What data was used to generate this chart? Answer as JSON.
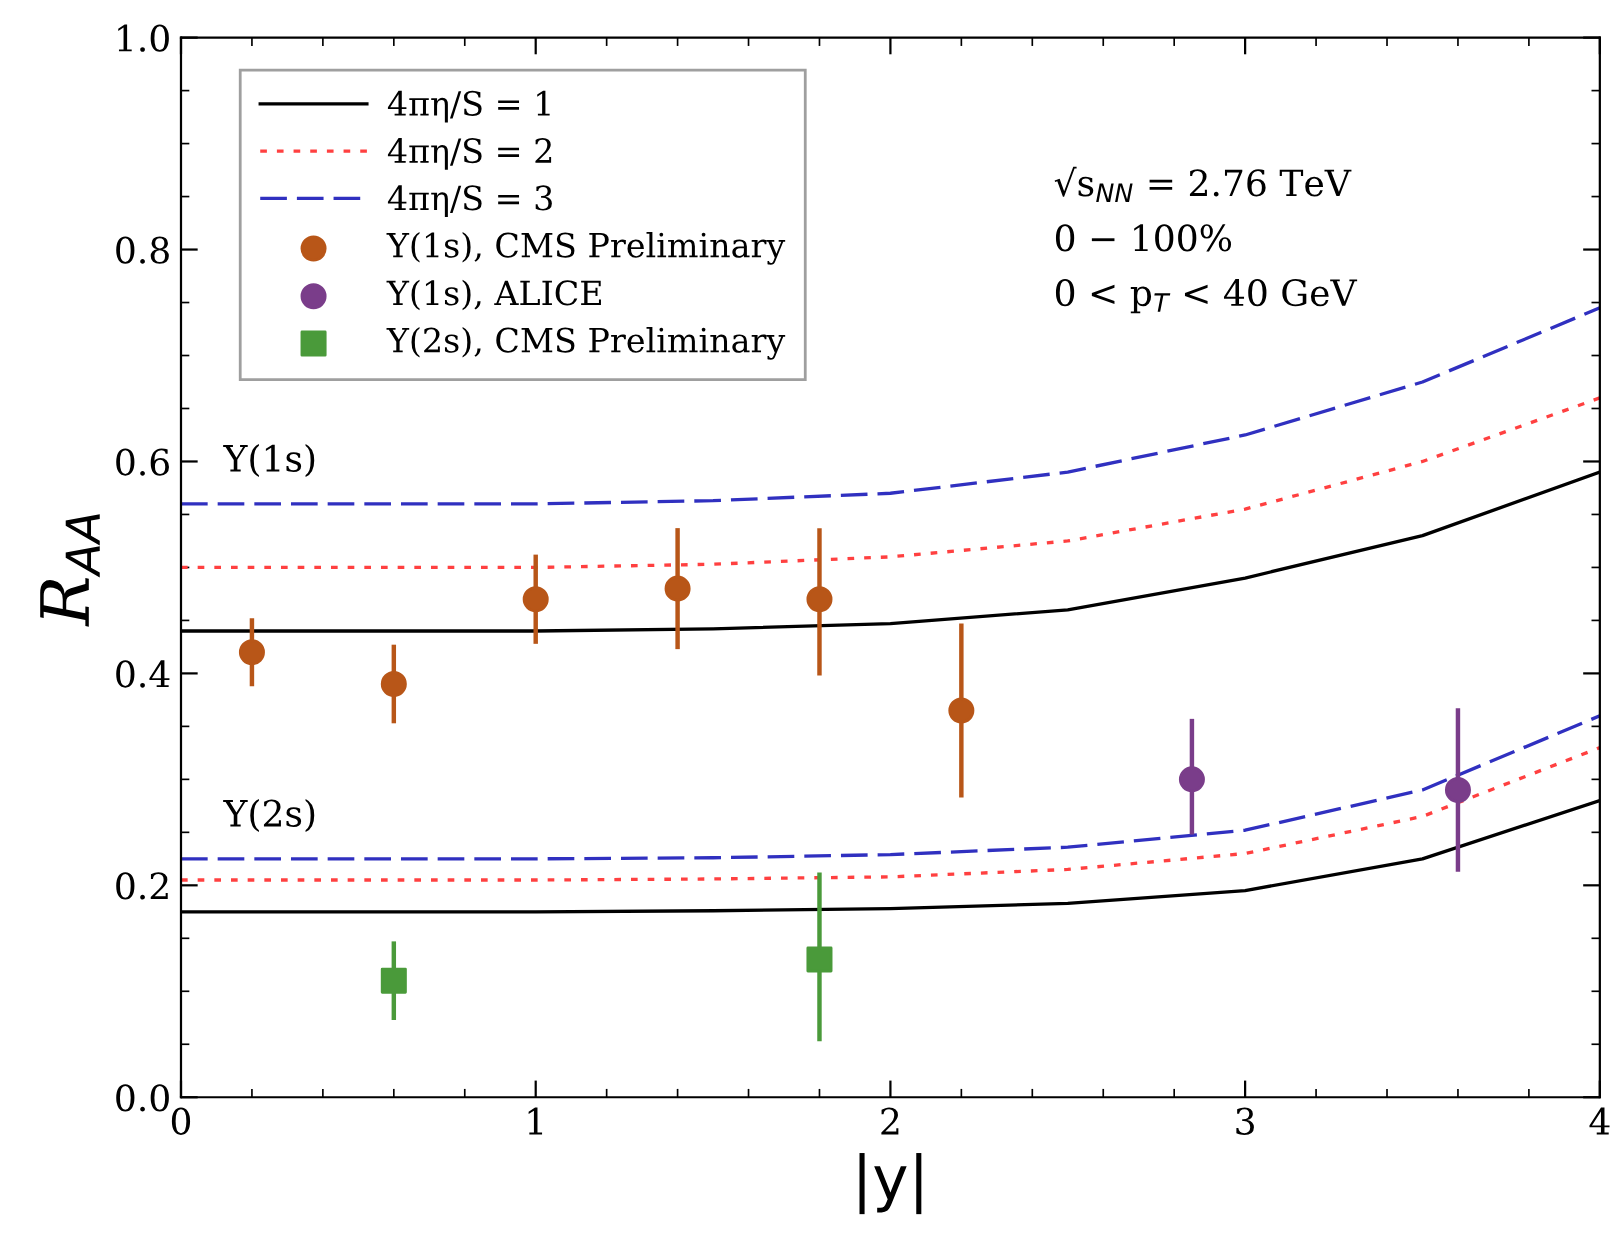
{
  "chart_data": {
    "type": "line",
    "xlabel": "|y|",
    "ylabel": "R$_{AA}$",
    "xlim": [
      0,
      4
    ],
    "ylim": [
      0,
      1
    ],
    "xticks": [
      0,
      1,
      2,
      3,
      4
    ],
    "yticks": [
      {
        "value": 0,
        "label": "0.0"
      },
      {
        "value": 0.2,
        "label": "0.2"
      },
      {
        "value": 0.4,
        "label": "0.4"
      },
      {
        "value": 0.6,
        "label": "0.6"
      },
      {
        "value": 0.8,
        "label": "0.8"
      },
      {
        "value": 1,
        "label": "1.0"
      }
    ],
    "grid": false,
    "legend": "top left",
    "annotations": [
      "Υ(1s)",
      "Υ(2s)",
      "√s$_{NN}$ = 2.76 TeV",
      "0 − 100%",
      "0 < p$_{T}$ < 40 GeV"
    ],
    "series": [
      {
        "name": "4πη/S = 1",
        "color": "#000000",
        "line_style": "solid",
        "x": [
          0,
          0.5,
          1,
          1.5,
          2,
          2.5,
          3,
          3.5,
          4
        ],
        "values": [
          0.44,
          0.44,
          0.44,
          0.442,
          0.447,
          0.46,
          0.49,
          0.53,
          0.59
        ]
      },
      {
        "name": "4πη/S = 2",
        "color": "#ff4040",
        "line_style": "dotted",
        "x": [
          0,
          0.5,
          1,
          1.5,
          2,
          2.5,
          3,
          3.5,
          4
        ],
        "values": [
          0.5,
          0.5,
          0.5,
          0.503,
          0.51,
          0.525,
          0.555,
          0.6,
          0.66
        ]
      },
      {
        "name": "4πη/S = 3",
        "color": "#3030c0",
        "line_style": "dashed",
        "x": [
          0,
          0.5,
          1,
          1.5,
          2,
          2.5,
          3,
          3.5,
          4
        ],
        "values": [
          0.56,
          0.56,
          0.56,
          0.563,
          0.57,
          0.59,
          0.625,
          0.675,
          0.745
        ]
      },
      {
        "name": "Υ(1s), CMS Preliminary",
        "type": "scatter",
        "marker": "circle",
        "color": "#b85618",
        "x": [
          0.2,
          0.6,
          1.0,
          1.4,
          1.8,
          2.2
        ],
        "values": [
          0.42,
          0.39,
          0.47,
          0.48,
          0.47,
          0.365
        ],
        "errors": [
          [
            0.39,
            0.45
          ],
          [
            0.355,
            0.425
          ],
          [
            0.43,
            0.51
          ],
          [
            0.425,
            0.535
          ],
          [
            0.4,
            0.535
          ],
          [
            0.285,
            0.445
          ]
        ]
      },
      {
        "name": "Υ(1s), ALICE",
        "type": "scatter",
        "marker": "circle",
        "color": "#7a3d8a",
        "x": [
          2.85,
          3.6
        ],
        "values": [
          0.3,
          0.29
        ],
        "errors": [
          [
            0.25,
            0.355
          ],
          [
            0.215,
            0.365
          ]
        ]
      },
      {
        "name": "Υ(2s), CMS Preliminary",
        "type": "scatter",
        "marker": "square",
        "color": "#4a9a3a",
        "x": [
          0.6,
          1.8
        ],
        "values": [
          0.11,
          0.13
        ],
        "errors": [
          [
            0.075,
            0.145
          ],
          [
            0.055,
            0.21
          ]
        ]
      },
      {
        "color": "#000000",
        "line_style": "solid",
        "x": [
          0,
          0.5,
          1,
          1.5,
          2,
          2.5,
          3,
          3.5,
          4
        ],
        "values": [
          0.175,
          0.175,
          0.175,
          0.176,
          0.178,
          0.183,
          0.195,
          0.225,
          0.28
        ]
      },
      {
        "color": "#ff4040",
        "line_style": "dotted",
        "x": [
          0,
          0.5,
          1,
          1.5,
          2,
          2.5,
          3,
          3.5,
          4
        ],
        "values": [
          0.205,
          0.205,
          0.205,
          0.206,
          0.208,
          0.215,
          0.23,
          0.265,
          0.33
        ]
      },
      {
        "color": "#3030c0",
        "line_style": "dashed",
        "x": [
          0,
          0.5,
          1,
          1.5,
          2,
          2.5,
          3,
          3.5,
          4
        ],
        "values": [
          0.225,
          0.225,
          0.225,
          0.226,
          0.229,
          0.236,
          0.252,
          0.29,
          0.36
        ]
      }
    ]
  }
}
